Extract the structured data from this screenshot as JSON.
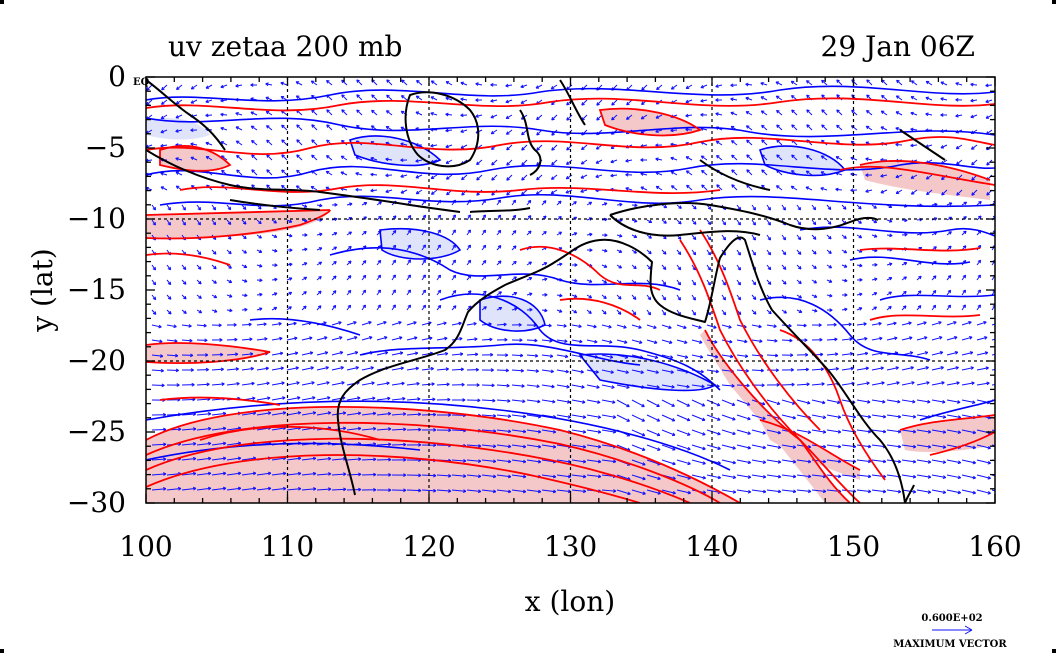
{
  "header": {
    "title": "uv zetaa 200 mb",
    "time": "29 Jan 06Z"
  },
  "axes": {
    "xlabel": "x (lon)",
    "ylabel": "y (lat)",
    "xlim": [
      100,
      160
    ],
    "ylim": [
      -30,
      0
    ],
    "xticks": [
      {
        "value": 100,
        "label": "100"
      },
      {
        "value": 110,
        "label": "110"
      },
      {
        "value": 120,
        "label": "120"
      },
      {
        "value": 130,
        "label": "130"
      },
      {
        "value": 140,
        "label": "140"
      },
      {
        "value": 150,
        "label": "150"
      },
      {
        "value": 160,
        "label": "160"
      }
    ],
    "yticks": [
      {
        "value": 0,
        "label": "0"
      },
      {
        "value": -5,
        "label": "−5"
      },
      {
        "value": -10,
        "label": "−10"
      },
      {
        "value": -15,
        "label": "−15"
      },
      {
        "value": -20,
        "label": "−20"
      },
      {
        "value": -25,
        "label": "−25"
      },
      {
        "value": -30,
        "label": "−30"
      }
    ],
    "equator_label": "EQ",
    "grid": true
  },
  "legend": {
    "value_label": "0.600E+02",
    "caption": "MAXIMUM VECTOR"
  },
  "colors": {
    "positive_contour": "#ff0000",
    "positive_fill": "#f4c8c8",
    "negative_contour": "#0000ff",
    "negative_fill": "#dfe4fb",
    "vector": "#1010ff",
    "coast": "#000000"
  }
}
